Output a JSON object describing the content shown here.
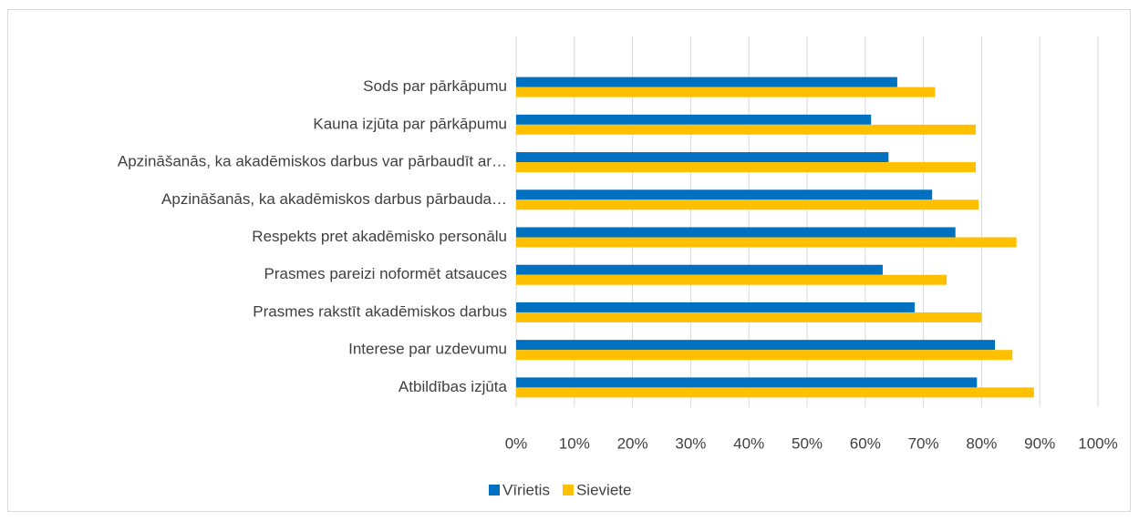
{
  "chart_data": {
    "type": "barh",
    "categories": [
      "Sods par pārkāpumu",
      "Kauna izjūta par pārkāpumu",
      "Apzināšanās, ka akadēmiskos darbus var pārbaudīt ar…",
      "Apzināšanās, ka akadēmiskos darbus pārbauda…",
      "Respekts pret akadēmisko personālu",
      "Prasmes pareizi noformēt atsauces",
      "Prasmes rakstīt akadēmiskos darbus",
      "Interese par uzdevumu",
      "Atbildības izjūta"
    ],
    "series": [
      {
        "name": "Vīrietis",
        "color": "#0070c0",
        "values": [
          65.5,
          61,
          64,
          71.5,
          75.5,
          63,
          68.5,
          82.3,
          79.2
        ]
      },
      {
        "name": "Sieviete",
        "color": "#ffc000",
        "values": [
          72,
          79,
          79,
          79.5,
          86,
          74,
          80,
          85.3,
          89
        ]
      }
    ],
    "xlim": [
      0,
      100
    ],
    "xticks": [
      {
        "value": 0,
        "label": "0%"
      },
      {
        "value": 10,
        "label": "10%"
      },
      {
        "value": 20,
        "label": "20%"
      },
      {
        "value": 30,
        "label": "30%"
      },
      {
        "value": 40,
        "label": "40%"
      },
      {
        "value": 50,
        "label": "50%"
      },
      {
        "value": 60,
        "label": "60%"
      },
      {
        "value": 70,
        "label": "70%"
      },
      {
        "value": 80,
        "label": "80%"
      },
      {
        "value": 90,
        "label": "90%"
      },
      {
        "value": 100,
        "label": "100%"
      }
    ],
    "grid": true,
    "legend": "bottom"
  }
}
